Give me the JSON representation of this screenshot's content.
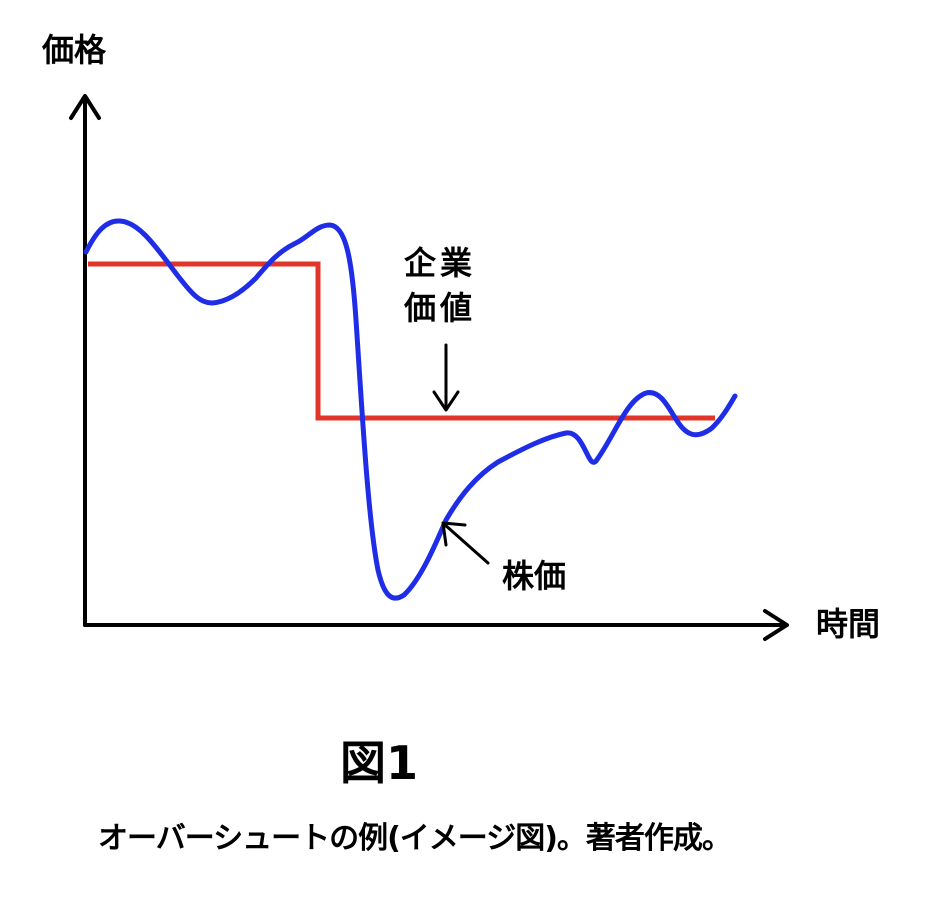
{
  "labels": {
    "y_axis": "価格",
    "x_axis": "時間",
    "company_value_line1": "企業",
    "company_value_line2": "価値",
    "stock_price": "株価"
  },
  "figure": {
    "title": "図1",
    "caption": "オーバーシュートの例(イメージ図)。著者作成。"
  },
  "colors": {
    "company_value": "#e3342a",
    "stock_price": "#1f2ee6",
    "axes": "#000000"
  }
}
